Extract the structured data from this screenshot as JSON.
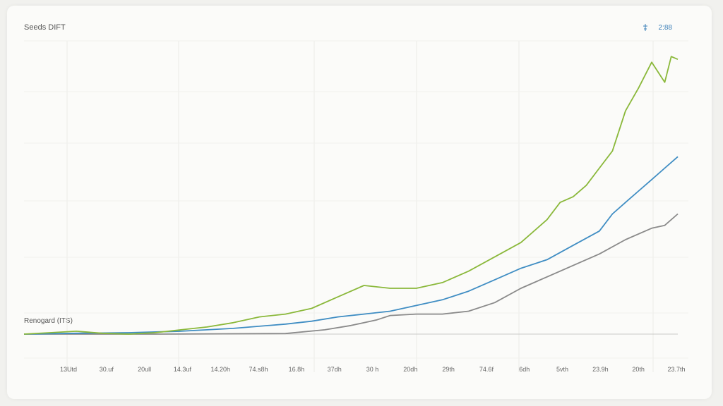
{
  "chart_data": {
    "type": "line",
    "title": "Seeds DIFT",
    "annotation_value": "2:88",
    "baseline_label": "Renogard (ITS)",
    "x_tick_labels": [
      "13Utd",
      "30.uf",
      "20ull",
      "14.3uf",
      "14.20h",
      "74.s8h",
      "16.8h",
      "37dh",
      "30 h",
      "20dh",
      "29th",
      "74.6f",
      "6dh",
      "5vth",
      "23.9h",
      "20th",
      "23.7th"
    ],
    "ylim": [
      0,
      100
    ],
    "grid": true,
    "series": [
      {
        "color": "#8ab83a",
        "x": [
          0,
          4,
          8,
          12,
          16,
          20,
          24,
          28,
          32,
          36,
          40,
          44,
          48,
          52,
          56,
          60,
          64,
          68,
          72,
          76,
          80,
          82,
          84,
          86,
          88,
          90,
          92,
          94,
          96,
          98,
          99,
          100
        ],
        "values": [
          0,
          0.5,
          1,
          0.3,
          0,
          0.5,
          1.5,
          2.5,
          4,
          6,
          7,
          9,
          13,
          17,
          16,
          16,
          18,
          22,
          27,
          32,
          40,
          46,
          48,
          52,
          58,
          64,
          78,
          86,
          95,
          88,
          97,
          96
        ]
      },
      {
        "color": "#3f8dc3",
        "x": [
          0,
          8,
          16,
          24,
          32,
          40,
          44,
          48,
          52,
          56,
          60,
          64,
          68,
          72,
          76,
          80,
          84,
          88,
          90,
          92,
          94,
          96,
          98,
          100
        ],
        "values": [
          0,
          0.3,
          0.5,
          1,
          2,
          3.5,
          4.5,
          6,
          7,
          8,
          10,
          12,
          15,
          19,
          23,
          26,
          31,
          36,
          42,
          46,
          50,
          54,
          58,
          62
        ]
      },
      {
        "color": "#8a8a8a",
        "x": [
          0,
          20,
          40,
          46,
          50,
          54,
          56,
          60,
          64,
          68,
          72,
          76,
          80,
          84,
          88,
          92,
          96,
          98,
          100
        ],
        "values": [
          0,
          0,
          0.2,
          1.5,
          3,
          5,
          6.5,
          7,
          7,
          8,
          11,
          16,
          20,
          24,
          28,
          33,
          37,
          38,
          42
        ]
      }
    ]
  }
}
